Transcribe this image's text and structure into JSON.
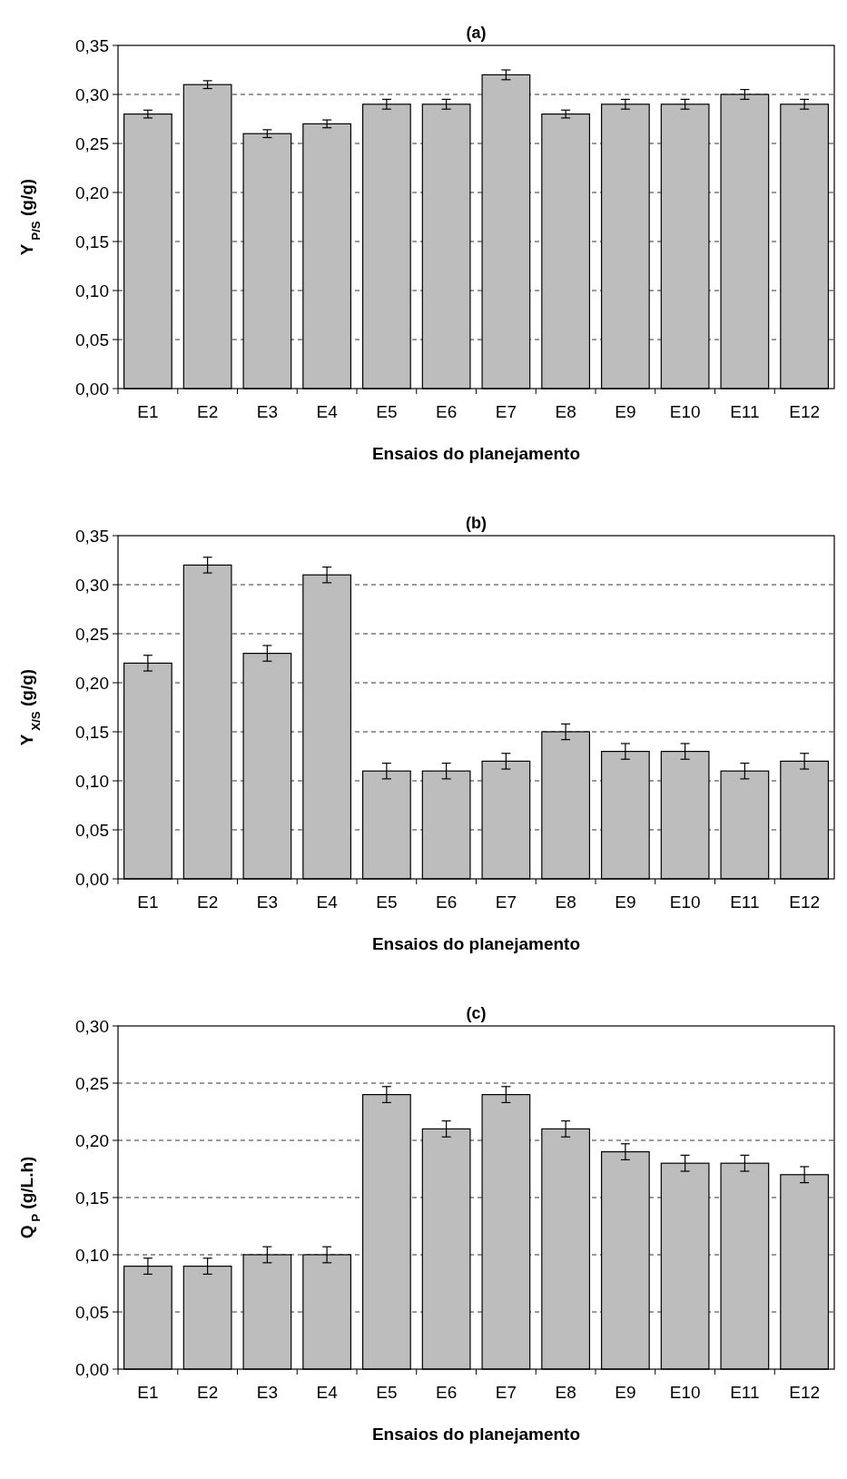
{
  "chart_data": [
    {
      "type": "bar",
      "title": "(a)",
      "xlabel": "Ensaios do planejamento",
      "ylabel": "Y$_{P/S}$ (g/g)",
      "categories": [
        "E1",
        "E2",
        "E3",
        "E4",
        "E5",
        "E6",
        "E7",
        "E8",
        "E9",
        "E10",
        "E11",
        "E12"
      ],
      "values": [
        0.28,
        0.31,
        0.26,
        0.27,
        0.29,
        0.29,
        0.32,
        0.28,
        0.29,
        0.29,
        0.3,
        0.29
      ],
      "errors": [
        0.004,
        0.004,
        0.004,
        0.004,
        0.005,
        0.005,
        0.005,
        0.004,
        0.005,
        0.005,
        0.005,
        0.005
      ],
      "color": "#bdbdbd",
      "ylim": [
        0,
        0.35
      ],
      "yticks": [
        {
          "value": 0,
          "label": "0,00"
        },
        {
          "value": 0.05,
          "label": "0,05"
        },
        {
          "value": 0.1,
          "label": "0,10"
        },
        {
          "value": 0.15,
          "label": "0,15"
        },
        {
          "value": 0.2,
          "label": "0,20"
        },
        {
          "value": 0.25,
          "label": "0,25"
        },
        {
          "value": 0.3,
          "label": "0,30"
        },
        {
          "value": 0.35,
          "label": "0,35"
        }
      ],
      "grid": "y"
    },
    {
      "type": "bar",
      "title": "(b)",
      "xlabel": "Ensaios do planejamento",
      "ylabel": "Y$_{X/S}$ (g/g)",
      "categories": [
        "E1",
        "E2",
        "E3",
        "E4",
        "E5",
        "E6",
        "E7",
        "E8",
        "E9",
        "E10",
        "E11",
        "E12"
      ],
      "values": [
        0.22,
        0.32,
        0.23,
        0.31,
        0.11,
        0.11,
        0.12,
        0.15,
        0.13,
        0.13,
        0.11,
        0.12
      ],
      "errors": [
        0.008,
        0.008,
        0.008,
        0.008,
        0.008,
        0.008,
        0.008,
        0.008,
        0.008,
        0.008,
        0.008,
        0.008
      ],
      "color": "#bdbdbd",
      "ylim": [
        0,
        0.35
      ],
      "yticks": [
        {
          "value": 0,
          "label": "0,00"
        },
        {
          "value": 0.05,
          "label": "0,05"
        },
        {
          "value": 0.1,
          "label": "0,10"
        },
        {
          "value": 0.15,
          "label": "0,15"
        },
        {
          "value": 0.2,
          "label": "0,20"
        },
        {
          "value": 0.25,
          "label": "0,25"
        },
        {
          "value": 0.3,
          "label": "0,30"
        },
        {
          "value": 0.35,
          "label": "0,35"
        }
      ],
      "grid": "y"
    },
    {
      "type": "bar",
      "title": "(c)",
      "xlabel": "Ensaios do planejamento",
      "ylabel": "Q$_{P}$ (g/L.h)",
      "categories": [
        "E1",
        "E2",
        "E3",
        "E4",
        "E5",
        "E6",
        "E7",
        "E8",
        "E9",
        "E10",
        "E11",
        "E12"
      ],
      "values": [
        0.09,
        0.09,
        0.1,
        0.1,
        0.24,
        0.21,
        0.24,
        0.21,
        0.19,
        0.18,
        0.18,
        0.17
      ],
      "errors": [
        0.007,
        0.007,
        0.007,
        0.007,
        0.007,
        0.007,
        0.007,
        0.007,
        0.007,
        0.007,
        0.007,
        0.007
      ],
      "color": "#bdbdbd",
      "ylim": [
        0,
        0.3
      ],
      "yticks": [
        {
          "value": 0,
          "label": "0,00"
        },
        {
          "value": 0.05,
          "label": "0,05"
        },
        {
          "value": 0.1,
          "label": "0,10"
        },
        {
          "value": 0.15,
          "label": "0,15"
        },
        {
          "value": 0.2,
          "label": "0,20"
        },
        {
          "value": 0.25,
          "label": "0,25"
        },
        {
          "value": 0.3,
          "label": "0,30"
        }
      ],
      "grid": "y"
    }
  ]
}
